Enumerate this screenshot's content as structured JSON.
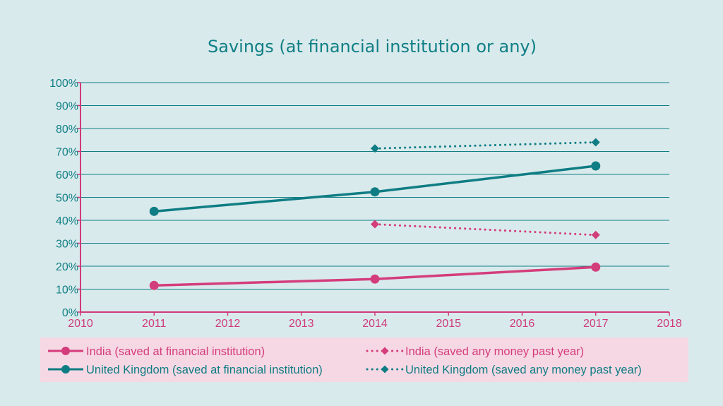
{
  "chart_data": {
    "type": "line",
    "title": "Savings (at financial institution or any)",
    "xlabel": "",
    "ylabel": "",
    "xlim": [
      2010,
      2018
    ],
    "ylim": [
      0,
      100
    ],
    "x_ticks": [
      2010,
      2011,
      2012,
      2013,
      2014,
      2015,
      2016,
      2017,
      2018
    ],
    "y_ticks": [
      "0%",
      "10%",
      "20%",
      "30%",
      "40%",
      "50%",
      "60%",
      "70%",
      "80%",
      "90%",
      "100%"
    ],
    "grid": true,
    "legend_position": "bottom",
    "series": [
      {
        "name": "India (saved at financial institution)",
        "x": [
          2011,
          2014,
          2017
        ],
        "y": [
          11.6,
          14.4,
          19.6
        ],
        "color": "#d43d7b",
        "style": "solid",
        "marker": "circle"
      },
      {
        "name": "India (saved any money past year)",
        "x": [
          2014,
          2017
        ],
        "y": [
          38.3,
          33.6
        ],
        "color": "#d43d7b",
        "style": "dotted",
        "marker": "diamond"
      },
      {
        "name": "United Kingdom (saved at financial institution)",
        "x": [
          2011,
          2014,
          2017
        ],
        "y": [
          43.9,
          52.4,
          63.7
        ],
        "color": "#0f7d83",
        "style": "solid",
        "marker": "circle"
      },
      {
        "name": "United Kingdom (saved any money past year)",
        "x": [
          2014,
          2017
        ],
        "y": [
          71.3,
          74.0
        ],
        "color": "#0f7d83",
        "style": "dotted",
        "marker": "diamond"
      }
    ]
  },
  "colors": {
    "background": "#d9eaec",
    "legend_background": "#f6d8e4",
    "grid": "#0f7d83",
    "axis": "#cf3a7a",
    "title": "#0f7f85",
    "india": "#d43d7b",
    "uk": "#0f7d83"
  }
}
